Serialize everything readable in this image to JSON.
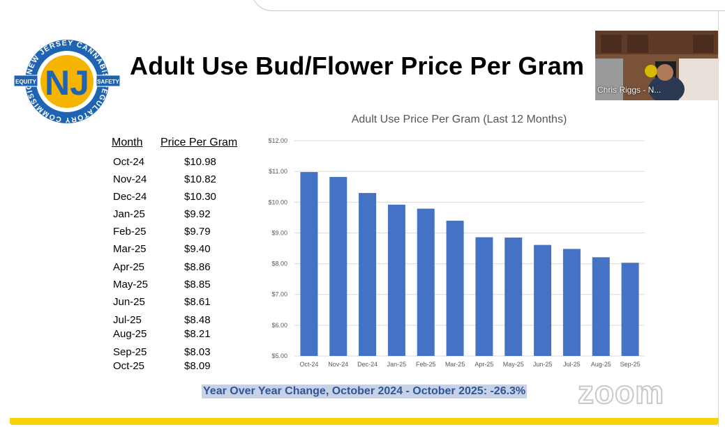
{
  "slide": {
    "title": "Adult Use Bud/Flower Price Per Gram",
    "logo_ring_text": "NEW JERSEY CANNABIS REGULATORY COMMISSION",
    "logo_badges": [
      "EQUITY",
      "SAFETY"
    ],
    "logo_center": "NJ",
    "yoy_text": "Year Over Year Change, October 2024 - October 2025: -26.3%",
    "watermark": "zoom"
  },
  "webcam": {
    "participant": "Chris Riggs - N..."
  },
  "table": {
    "headers": {
      "month": "Month",
      "price": "Price Per Gram"
    },
    "rows": [
      {
        "month": "Oct-24",
        "price": "$10.98"
      },
      {
        "month": "Nov-24",
        "price": "$10.82"
      },
      {
        "month": "Dec-24",
        "price": "$10.30"
      },
      {
        "month": "Jan-25",
        "price": "$9.92"
      },
      {
        "month": "Feb-25",
        "price": "$9.79"
      },
      {
        "month": "Mar-25",
        "price": "$9.40"
      },
      {
        "month": "Apr-25",
        "price": "$8.86"
      },
      {
        "month": "May-25",
        "price": "$8.85"
      },
      {
        "month": "Jun-25",
        "price": "$8.61"
      },
      {
        "month": "Jul-25",
        "price": "$8.48"
      },
      {
        "month": "Aug-25",
        "price": "$8.21"
      },
      {
        "month": "Sep-25",
        "price": "$8.03"
      },
      {
        "month": "Oct-25",
        "price": "$8.09"
      }
    ]
  },
  "chart_data": {
    "type": "bar",
    "title": "Adult Use Price Per Gram (Last 12 Months)",
    "categories": [
      "Oct-24",
      "Nov-24",
      "Dec-24",
      "Jan-25",
      "Feb-25",
      "Mar-25",
      "Apr-25",
      "May-25",
      "Jun-25",
      "Jul-25",
      "Aug-25",
      "Sep-25"
    ],
    "values": [
      10.98,
      10.82,
      10.3,
      9.92,
      9.79,
      9.4,
      8.86,
      8.85,
      8.61,
      8.48,
      8.21,
      8.03
    ],
    "ylim": [
      5,
      12
    ],
    "yticks": [
      "$5.00",
      "$6.00",
      "$7.00",
      "$8.00",
      "$9.00",
      "$10.00",
      "$11.00",
      "$12.00"
    ],
    "grid": true,
    "xlabel": "",
    "ylabel": "",
    "bar_color": "#4472c4"
  },
  "colors": {
    "accent_yellow": "#f5d20a",
    "logo_blue": "#1f64b3",
    "highlight": "#c7d2e6",
    "highlight_text": "#2f5597"
  }
}
